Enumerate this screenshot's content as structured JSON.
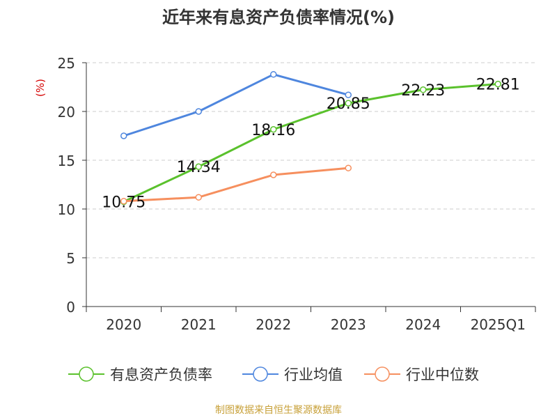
{
  "chart_data": {
    "type": "line",
    "title": "近年来有息资产负债率情况(%)",
    "ylabel": "(%)",
    "xlabel": "",
    "categories": [
      "2020",
      "2021",
      "2022",
      "2023",
      "2024",
      "2025Q1"
    ],
    "ylim": [
      0,
      25
    ],
    "yticks": [
      0,
      5,
      10,
      15,
      20,
      25
    ],
    "grid": "horizontal dashed",
    "legend_position": "bottom",
    "series": [
      {
        "name": "有息资产负债率",
        "color": "#5ac12c",
        "values": [
          10.75,
          14.34,
          18.16,
          20.85,
          22.23,
          22.81
        ],
        "labels": [
          "10.75",
          "14.34",
          "18.16",
          "20.85",
          "22.23",
          "22.81"
        ]
      },
      {
        "name": "行业均值",
        "color": "#4e86de",
        "values": [
          17.5,
          20.0,
          23.8,
          21.7,
          null,
          null
        ]
      },
      {
        "name": "行业中位数",
        "color": "#f68f5e",
        "values": [
          10.8,
          11.2,
          13.5,
          14.2,
          null,
          null
        ]
      }
    ],
    "source": "制图数据来自恒生聚源数据库"
  }
}
